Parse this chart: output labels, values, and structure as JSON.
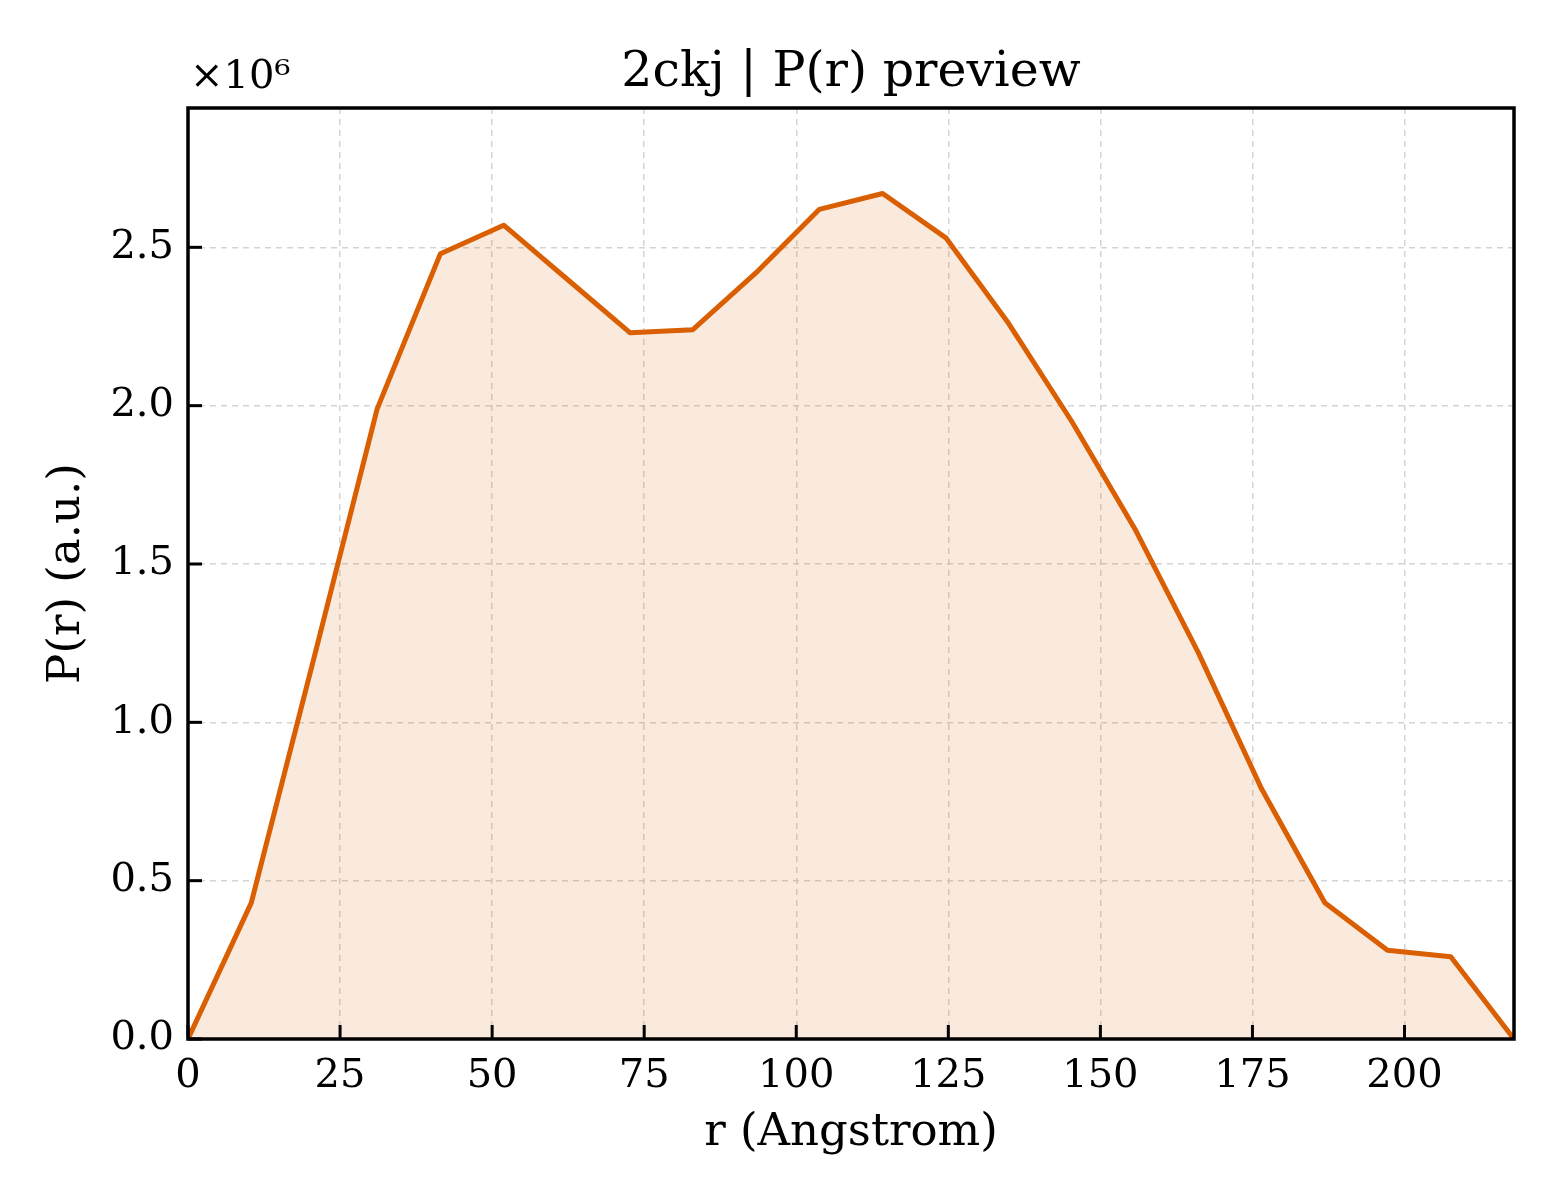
{
  "chart_data": {
    "type": "area",
    "title": "2ckj | P(r) preview",
    "xlabel": "r (Angstrom)",
    "ylabel": "P(r) (a.u.)",
    "annotations": [
      "×10⁶"
    ],
    "x": [
      0,
      10.4,
      20.8,
      31.1,
      41.5,
      51.9,
      62.3,
      72.7,
      83.0,
      93.4,
      103.8,
      114.2,
      124.6,
      134.9,
      145.3,
      155.7,
      166.1,
      176.5,
      186.9,
      197.2,
      207.6,
      218.0
    ],
    "series": [
      {
        "color": "#d95f02",
        "values": [
          0,
          0.43,
          1.21,
          1.99,
          2.48,
          2.57,
          2.4,
          2.23,
          2.24,
          2.42,
          2.62,
          2.67,
          2.53,
          2.26,
          1.95,
          1.61,
          1.22,
          0.79,
          0.43,
          0.28,
          0.26,
          0
        ]
      }
    ],
    "xlim": [
      0,
      218
    ],
    "ylim": [
      0,
      2.94
    ],
    "xticks": [
      0,
      25,
      50,
      75,
      100,
      125,
      150,
      175,
      200
    ],
    "yticks": [
      {
        "value": 0,
        "label": "0.0"
      },
      {
        "value": 0.5,
        "label": "0.5"
      },
      {
        "value": 1,
        "label": "1.0"
      },
      {
        "value": 1.5,
        "label": "1.5"
      },
      {
        "value": 2,
        "label": "2.0"
      },
      {
        "value": 2.5,
        "label": "2.5"
      }
    ],
    "grid": true
  }
}
